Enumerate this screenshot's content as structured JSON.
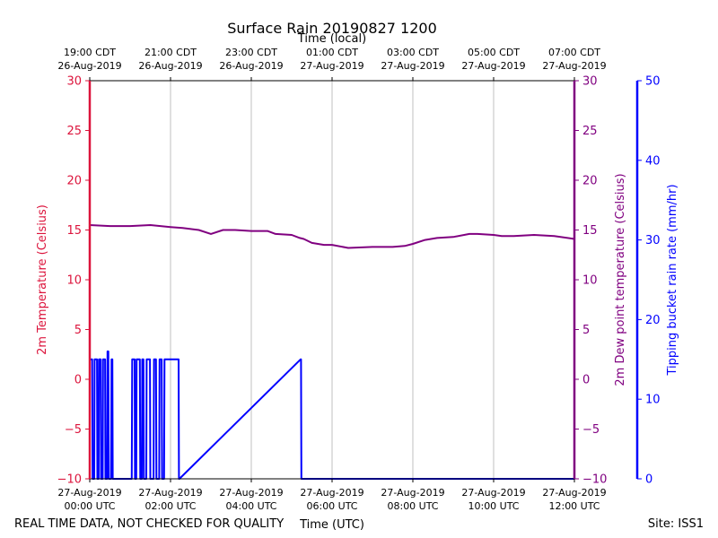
{
  "chart_data": {
    "type": "line",
    "title": "Surface Rain 20190827 1200",
    "top_axis_title": "Time (local)",
    "xlabel": "Time (UTC)",
    "left_ylabel": "2m Temperature (Celsius)",
    "right1_ylabel": "2m Dew point temperature (Celsius)",
    "right2_ylabel": "Tipping bucket rain rate (mm/hr)",
    "footer_left": "REAL TIME DATA, NOT CHECKED FOR QUALITY",
    "footer_right": "Site: ISS1",
    "xlim_hours_utc": [
      0,
      12
    ],
    "temp_ylim": [
      -10,
      30
    ],
    "dew_ylim": [
      -10,
      30
    ],
    "rain_ylim": [
      0,
      50
    ],
    "temp_yticks": [
      -10,
      -5,
      0,
      5,
      10,
      15,
      20,
      25,
      30
    ],
    "dew_yticks": [
      -10,
      -5,
      0,
      5,
      10,
      15,
      20,
      25,
      30
    ],
    "rain_yticks": [
      0,
      10,
      20,
      30,
      40,
      50
    ],
    "bottom_ticks": [
      {
        "x": 0,
        "line1": "27-Aug-2019",
        "line2": "00:00 UTC"
      },
      {
        "x": 2,
        "line1": "27-Aug-2019",
        "line2": "02:00 UTC"
      },
      {
        "x": 4,
        "line1": "27-Aug-2019",
        "line2": "04:00 UTC"
      },
      {
        "x": 6,
        "line1": "27-Aug-2019",
        "line2": "06:00 UTC"
      },
      {
        "x": 8,
        "line1": "27-Aug-2019",
        "line2": "08:00 UTC"
      },
      {
        "x": 10,
        "line1": "27-Aug-2019",
        "line2": "10:00 UTC"
      },
      {
        "x": 12,
        "line1": "27-Aug-2019",
        "line2": "12:00 UTC"
      }
    ],
    "top_ticks": [
      {
        "x": 0,
        "line1": "19:00 CDT",
        "line2": "26-Aug-2019"
      },
      {
        "x": 2,
        "line1": "21:00 CDT",
        "line2": "26-Aug-2019"
      },
      {
        "x": 4,
        "line1": "23:00 CDT",
        "line2": "26-Aug-2019"
      },
      {
        "x": 6,
        "line1": "01:00 CDT",
        "line2": "27-Aug-2019"
      },
      {
        "x": 8,
        "line1": "03:00 CDT",
        "line2": "27-Aug-2019"
      },
      {
        "x": 10,
        "line1": "05:00 CDT",
        "line2": "27-Aug-2019"
      },
      {
        "x": 12,
        "line1": "07:00 CDT",
        "line2": "27-Aug-2019"
      }
    ],
    "grid": true,
    "colors": {
      "temperature": "#dc143c",
      "dewpoint": "#800080",
      "rain": "#0000ff",
      "grid": "#b0b0b0",
      "text": "#000000"
    },
    "series": [
      {
        "key": "dewpoint",
        "axis": "dew",
        "x": [
          0,
          0.5,
          1.0,
          1.5,
          2.0,
          2.3,
          2.7,
          3.0,
          3.3,
          3.6,
          4.0,
          4.4,
          4.6,
          5.0,
          5.2,
          5.3,
          5.5,
          5.8,
          6.0,
          6.4,
          7.0,
          7.5,
          7.8,
          8.0,
          8.3,
          8.6,
          9.0,
          9.4,
          9.6,
          10.0,
          10.2,
          10.5,
          11.0,
          11.5,
          12.0
        ],
        "values": [
          15.5,
          15.4,
          15.4,
          15.5,
          15.3,
          15.2,
          15.0,
          14.6,
          15.0,
          15.0,
          14.9,
          14.9,
          14.6,
          14.5,
          14.2,
          14.1,
          13.7,
          13.5,
          13.5,
          13.2,
          13.3,
          13.3,
          13.4,
          13.6,
          14.0,
          14.2,
          14.3,
          14.6,
          14.6,
          14.5,
          14.4,
          14.4,
          14.5,
          14.4,
          14.1
        ]
      },
      {
        "key": "rain",
        "axis": "rain",
        "x": [
          0.0,
          0.03,
          0.06,
          0.07,
          0.11,
          0.12,
          0.18,
          0.19,
          0.22,
          0.23,
          0.27,
          0.28,
          0.32,
          0.33,
          0.38,
          0.39,
          0.43,
          0.44,
          0.46,
          0.47,
          0.53,
          0.54,
          0.56,
          0.57,
          1.04,
          1.05,
          1.11,
          1.12,
          1.15,
          1.16,
          1.24,
          1.25,
          1.29,
          1.3,
          1.33,
          1.34,
          1.4,
          1.41,
          1.49,
          1.5,
          1.58,
          1.59,
          1.64,
          1.65,
          1.72,
          1.73,
          1.78,
          1.79,
          1.84,
          1.85,
          2.2,
          2.21,
          2.22,
          5.22,
          5.23,
          5.24,
          12.0
        ],
        "values": [
          15,
          15,
          15,
          0,
          0,
          15,
          15,
          0,
          0,
          15,
          15,
          0,
          0,
          15,
          15,
          0,
          0,
          16,
          16,
          0,
          0,
          15,
          15,
          0,
          0,
          15,
          15,
          0,
          0,
          15,
          15,
          0,
          0,
          15,
          15,
          0,
          0,
          15,
          15,
          0,
          0,
          15,
          15,
          0,
          0,
          15,
          15,
          0,
          0,
          15,
          15,
          0,
          0,
          15,
          15,
          0,
          0
        ]
      }
    ]
  }
}
